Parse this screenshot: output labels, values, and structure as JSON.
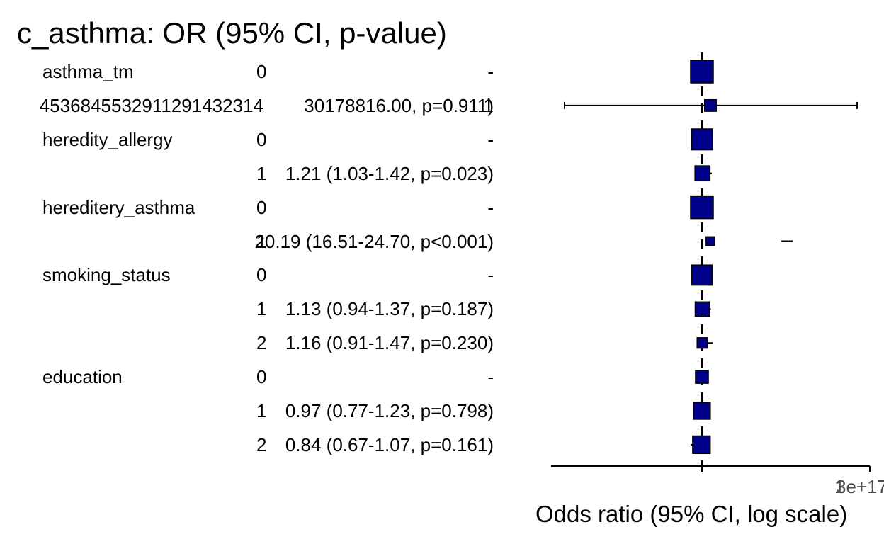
{
  "title": "c_asthma: OR (95% CI, p-value)",
  "chart_data": {
    "type": "forest",
    "title": "c_asthma: OR (95% CI, p-value)",
    "xlabel": "Odds ratio (95% CI, log scale)",
    "x_scale": "log",
    "reference_line": 1,
    "x_tick_labels": [
      "1",
      "3e+17"
    ],
    "marker_color": "#00008b",
    "rows": [
      {
        "variable": "asthma_tm",
        "level": "0",
        "text": "-",
        "or": 1,
        "lo": null,
        "hi": null,
        "weight": 1.0
      },
      {
        "variable": "",
        "level": "4536845532911291432314",
        "text": "1",
        "text_tail": "30178816.00, p=0.911)",
        "or": 6.0,
        "lo": 1e-09,
        "hi": 3e+17,
        "weight": 0.35
      },
      {
        "variable": "heredity_allergy",
        "level": "0",
        "text": "-",
        "or": 1,
        "lo": null,
        "hi": null,
        "weight": 0.9
      },
      {
        "variable": "",
        "level": "1",
        "text": "1.21 (1.03-1.42, p=0.023)",
        "or": 1.21,
        "lo": 1.03,
        "hi": 1.42,
        "weight": 0.55
      },
      {
        "variable": "hereditery_asthma",
        "level": "0",
        "text": "-",
        "or": 1,
        "lo": null,
        "hi": null,
        "weight": 1.0
      },
      {
        "variable": "",
        "level": "1",
        "text": "20.19 (16.51-24.70, p<0.001)",
        "or": 20.19,
        "lo": 16.51,
        "hi": 24.7,
        "weight": 0.18
      },
      {
        "variable": "smoking_status",
        "level": "0",
        "text": "-",
        "or": 1,
        "lo": null,
        "hi": null,
        "weight": 0.85
      },
      {
        "variable": "",
        "level": "1",
        "text": "1.13 (0.94-1.37, p=0.187)",
        "or": 1.13,
        "lo": 0.94,
        "hi": 1.37,
        "weight": 0.5
      },
      {
        "variable": "",
        "level": "2",
        "text": "1.16 (0.91-1.47, p=0.230)",
        "or": 1.16,
        "lo": 0.91,
        "hi": 1.47,
        "weight": 0.28
      },
      {
        "variable": "education",
        "level": "0",
        "text": "-",
        "or": 1,
        "lo": null,
        "hi": null,
        "weight": 0.42
      },
      {
        "variable": "",
        "level": "1",
        "text": "0.97 (0.77-1.23, p=0.798)",
        "or": 0.97,
        "lo": 0.77,
        "hi": 1.23,
        "weight": 0.66
      },
      {
        "variable": "",
        "level": "2",
        "text": "0.84 (0.67-1.07, p=0.161)",
        "or": 0.84,
        "lo": 0.67,
        "hi": 1.07,
        "weight": 0.7
      }
    ]
  }
}
